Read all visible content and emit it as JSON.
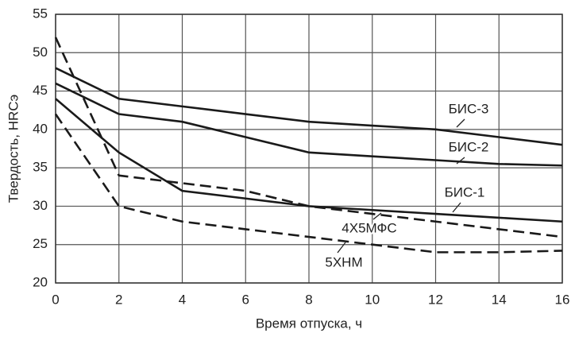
{
  "chart_data": {
    "type": "line",
    "x_label": "Время отпуска, ч",
    "y_label": "Твердость, HRCэ",
    "x": [
      0,
      2,
      4,
      6,
      8,
      10,
      12,
      14,
      16
    ],
    "series": [
      {
        "name": "БИС-3",
        "color": "#1a1a1a",
        "style": "solid",
        "values": [
          48,
          44,
          43,
          42,
          41,
          40.5,
          40,
          39,
          38
        ]
      },
      {
        "name": "БИС-2",
        "color": "#1a1a1a",
        "style": "solid",
        "values": [
          46,
          42,
          41,
          39,
          37,
          36.5,
          36,
          35.5,
          35.3
        ]
      },
      {
        "name": "БИС-1",
        "color": "#1a1a1a",
        "style": "solid",
        "values": [
          44,
          37,
          32,
          31,
          30,
          29.5,
          29,
          28.5,
          28
        ]
      },
      {
        "name": "4Х5МФС",
        "color": "#1a1a1a",
        "style": "dashed",
        "values": [
          52,
          34,
          33,
          32,
          30,
          29,
          28,
          27,
          26
        ]
      },
      {
        "name": "5ХНМ",
        "color": "#1a1a1a",
        "style": "dashed",
        "values": [
          42,
          30,
          28,
          27,
          26,
          25,
          24,
          24,
          24.2
        ]
      }
    ],
    "xlim": [
      0,
      16
    ],
    "xticks": [
      0,
      2,
      4,
      6,
      8,
      10,
      12,
      14,
      16
    ],
    "ylim": [
      20,
      55
    ],
    "yticks": [
      20,
      25,
      30,
      35,
      40,
      45,
      50,
      55
    ],
    "grid": true
  }
}
